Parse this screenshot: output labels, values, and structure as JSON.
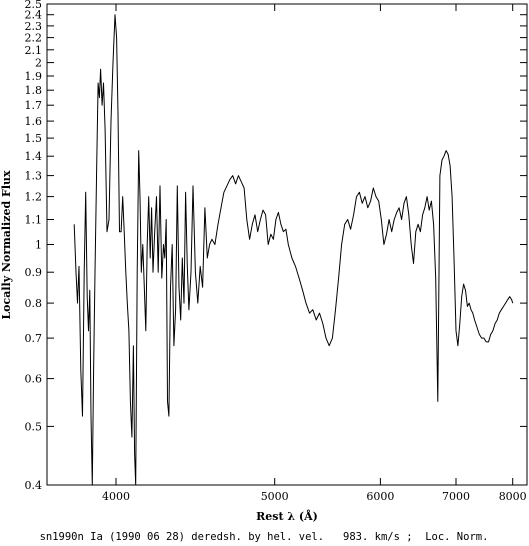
{
  "chart_data": {
    "type": "line",
    "title": "",
    "xlabel": "Rest λ (Å)",
    "ylabel": "Locally Normalized Flux",
    "caption": "sn1990n Ia (1990 06 28) deredsh. by hel. vel.   983. km/s ;  Loc. Norm.",
    "xscale": "reciprocal",
    "yscale": "log",
    "xlim": [
      3680,
      8300
    ],
    "ylim": [
      0.4,
      2.5
    ],
    "x_ticks": [
      4000,
      5000,
      6000,
      7000,
      8000
    ],
    "x_tick_labels": [
      "4000",
      "5000",
      "6000",
      "7000",
      "8000"
    ],
    "y_ticks": [
      0.4,
      0.5,
      0.6,
      0.7,
      0.8,
      0.9,
      1,
      1.1,
      1.2,
      1.3,
      1.4,
      1.5,
      1.6,
      1.7,
      1.8,
      1.9,
      2,
      2.1,
      2.2,
      2.3,
      2.4,
      2.5
    ],
    "y_tick_labels": [
      "0.4",
      "0.5",
      "0.6",
      "0.7",
      "0.8",
      "0.9",
      "1",
      "1.1",
      "1.2",
      "1.3",
      "1.4",
      "1.5",
      "1.6",
      "1.7",
      "1.8",
      "1.9",
      "2",
      "2.1",
      "2.2",
      "2.3",
      "2.4",
      "2.5"
    ],
    "grid": false,
    "series": [
      {
        "color": "#000000",
        "points": [
          [
            3800,
            1.08
          ],
          [
            3808,
            0.9
          ],
          [
            3815,
            0.8
          ],
          [
            3822,
            0.92
          ],
          [
            3830,
            0.62
          ],
          [
            3838,
            0.52
          ],
          [
            3846,
            0.9
          ],
          [
            3853,
            1.22
          ],
          [
            3860,
            0.82
          ],
          [
            3866,
            0.72
          ],
          [
            3872,
            0.84
          ],
          [
            3878,
            0.52
          ],
          [
            3884,
            0.4
          ],
          [
            3890,
            0.62
          ],
          [
            3897,
            0.9
          ],
          [
            3905,
            1.35
          ],
          [
            3912,
            1.85
          ],
          [
            3918,
            1.75
          ],
          [
            3924,
            1.95
          ],
          [
            3931,
            1.7
          ],
          [
            3938,
            1.85
          ],
          [
            3946,
            1.55
          ],
          [
            3955,
            1.05
          ],
          [
            3965,
            1.1
          ],
          [
            3975,
            1.6
          ],
          [
            3985,
            2.0
          ],
          [
            3995,
            2.4
          ],
          [
            4003,
            2.2
          ],
          [
            4010,
            1.65
          ],
          [
            4018,
            1.05
          ],
          [
            4026,
            1.05
          ],
          [
            4034,
            1.2
          ],
          [
            4042,
            1.05
          ],
          [
            4050,
            0.9
          ],
          [
            4058,
            0.8
          ],
          [
            4066,
            0.72
          ],
          [
            4074,
            0.55
          ],
          [
            4082,
            0.48
          ],
          [
            4090,
            0.68
          ],
          [
            4096,
            0.45
          ],
          [
            4102,
            0.4
          ],
          [
            4110,
            0.9
          ],
          [
            4118,
            1.43
          ],
          [
            4125,
            1.2
          ],
          [
            4132,
            0.9
          ],
          [
            4140,
            1.0
          ],
          [
            4148,
            0.85
          ],
          [
            4156,
            0.72
          ],
          [
            4164,
            1.0
          ],
          [
            4172,
            1.2
          ],
          [
            4180,
            0.95
          ],
          [
            4188,
            1.15
          ],
          [
            4196,
            0.9
          ],
          [
            4205,
            1.05
          ],
          [
            4215,
            1.2
          ],
          [
            4225,
            0.9
          ],
          [
            4235,
            1.25
          ],
          [
            4245,
            0.88
          ],
          [
            4255,
            1.0
          ],
          [
            4262,
            0.95
          ],
          [
            4270,
            1.1
          ],
          [
            4278,
            0.55
          ],
          [
            4286,
            0.52
          ],
          [
            4295,
            0.85
          ],
          [
            4305,
            1.0
          ],
          [
            4315,
            0.68
          ],
          [
            4325,
            0.78
          ],
          [
            4335,
            1.25
          ],
          [
            4345,
            0.85
          ],
          [
            4355,
            0.75
          ],
          [
            4365,
            0.95
          ],
          [
            4375,
            0.8
          ],
          [
            4385,
            1.22
          ],
          [
            4395,
            0.92
          ],
          [
            4405,
            0.78
          ],
          [
            4418,
            0.9
          ],
          [
            4430,
            1.25
          ],
          [
            4445,
            0.9
          ],
          [
            4460,
            0.8
          ],
          [
            4475,
            0.92
          ],
          [
            4490,
            0.85
          ],
          [
            4505,
            1.15
          ],
          [
            4520,
            0.95
          ],
          [
            4535,
            1.0
          ],
          [
            4550,
            1.02
          ],
          [
            4570,
            1.0
          ],
          [
            4590,
            1.08
          ],
          [
            4610,
            1.15
          ],
          [
            4630,
            1.22
          ],
          [
            4650,
            1.25
          ],
          [
            4670,
            1.28
          ],
          [
            4690,
            1.3
          ],
          [
            4710,
            1.26
          ],
          [
            4730,
            1.3
          ],
          [
            4750,
            1.27
          ],
          [
            4770,
            1.24
          ],
          [
            4790,
            1.1
          ],
          [
            4810,
            1.02
          ],
          [
            4830,
            1.08
          ],
          [
            4850,
            1.12
          ],
          [
            4870,
            1.05
          ],
          [
            4890,
            1.1
          ],
          [
            4910,
            1.14
          ],
          [
            4930,
            1.12
          ],
          [
            4950,
            1.0
          ],
          [
            4970,
            1.04
          ],
          [
            4990,
            1.02
          ],
          [
            5010,
            1.1
          ],
          [
            5030,
            1.13
          ],
          [
            5050,
            1.08
          ],
          [
            5070,
            1.05
          ],
          [
            5090,
            1.06
          ],
          [
            5110,
            1.0
          ],
          [
            5140,
            0.95
          ],
          [
            5170,
            0.92
          ],
          [
            5200,
            0.88
          ],
          [
            5230,
            0.84
          ],
          [
            5260,
            0.8
          ],
          [
            5290,
            0.77
          ],
          [
            5320,
            0.78
          ],
          [
            5350,
            0.75
          ],
          [
            5380,
            0.77
          ],
          [
            5410,
            0.74
          ],
          [
            5440,
            0.7
          ],
          [
            5470,
            0.68
          ],
          [
            5500,
            0.7
          ],
          [
            5530,
            0.78
          ],
          [
            5560,
            0.88
          ],
          [
            5590,
            1.0
          ],
          [
            5620,
            1.08
          ],
          [
            5650,
            1.1
          ],
          [
            5680,
            1.06
          ],
          [
            5710,
            1.12
          ],
          [
            5740,
            1.2
          ],
          [
            5770,
            1.22
          ],
          [
            5800,
            1.17
          ],
          [
            5830,
            1.2
          ],
          [
            5860,
            1.15
          ],
          [
            5890,
            1.18
          ],
          [
            5920,
            1.24
          ],
          [
            5950,
            1.2
          ],
          [
            5980,
            1.18
          ],
          [
            6010,
            1.1
          ],
          [
            6040,
            1.0
          ],
          [
            6070,
            1.04
          ],
          [
            6100,
            1.1
          ],
          [
            6130,
            1.05
          ],
          [
            6160,
            1.1
          ],
          [
            6190,
            1.13
          ],
          [
            6220,
            1.15
          ],
          [
            6250,
            1.1
          ],
          [
            6280,
            1.17
          ],
          [
            6310,
            1.2
          ],
          [
            6340,
            1.12
          ],
          [
            6370,
            1.0
          ],
          [
            6400,
            0.93
          ],
          [
            6430,
            1.05
          ],
          [
            6460,
            1.08
          ],
          [
            6490,
            1.05
          ],
          [
            6520,
            1.12
          ],
          [
            6550,
            1.15
          ],
          [
            6580,
            1.2
          ],
          [
            6610,
            1.14
          ],
          [
            6640,
            1.18
          ],
          [
            6670,
            1.08
          ],
          [
            6700,
            0.88
          ],
          [
            6730,
            0.55
          ],
          [
            6760,
            1.3
          ],
          [
            6790,
            1.38
          ],
          [
            6820,
            1.4
          ],
          [
            6850,
            1.43
          ],
          [
            6880,
            1.41
          ],
          [
            6910,
            1.35
          ],
          [
            6940,
            1.2
          ],
          [
            6970,
            0.95
          ],
          [
            7000,
            0.72
          ],
          [
            7030,
            0.68
          ],
          [
            7060,
            0.74
          ],
          [
            7090,
            0.82
          ],
          [
            7120,
            0.86
          ],
          [
            7150,
            0.84
          ],
          [
            7180,
            0.79
          ],
          [
            7210,
            0.8
          ],
          [
            7240,
            0.78
          ],
          [
            7270,
            0.77
          ],
          [
            7300,
            0.75
          ],
          [
            7340,
            0.73
          ],
          [
            7380,
            0.71
          ],
          [
            7420,
            0.7
          ],
          [
            7460,
            0.7
          ],
          [
            7500,
            0.69
          ],
          [
            7540,
            0.69
          ],
          [
            7580,
            0.71
          ],
          [
            7620,
            0.72
          ],
          [
            7660,
            0.74
          ],
          [
            7700,
            0.75
          ],
          [
            7740,
            0.77
          ],
          [
            7780,
            0.78
          ],
          [
            7820,
            0.79
          ],
          [
            7860,
            0.8
          ],
          [
            7900,
            0.81
          ],
          [
            7940,
            0.82
          ],
          [
            7980,
            0.81
          ],
          [
            8000,
            0.8
          ]
        ]
      }
    ]
  }
}
